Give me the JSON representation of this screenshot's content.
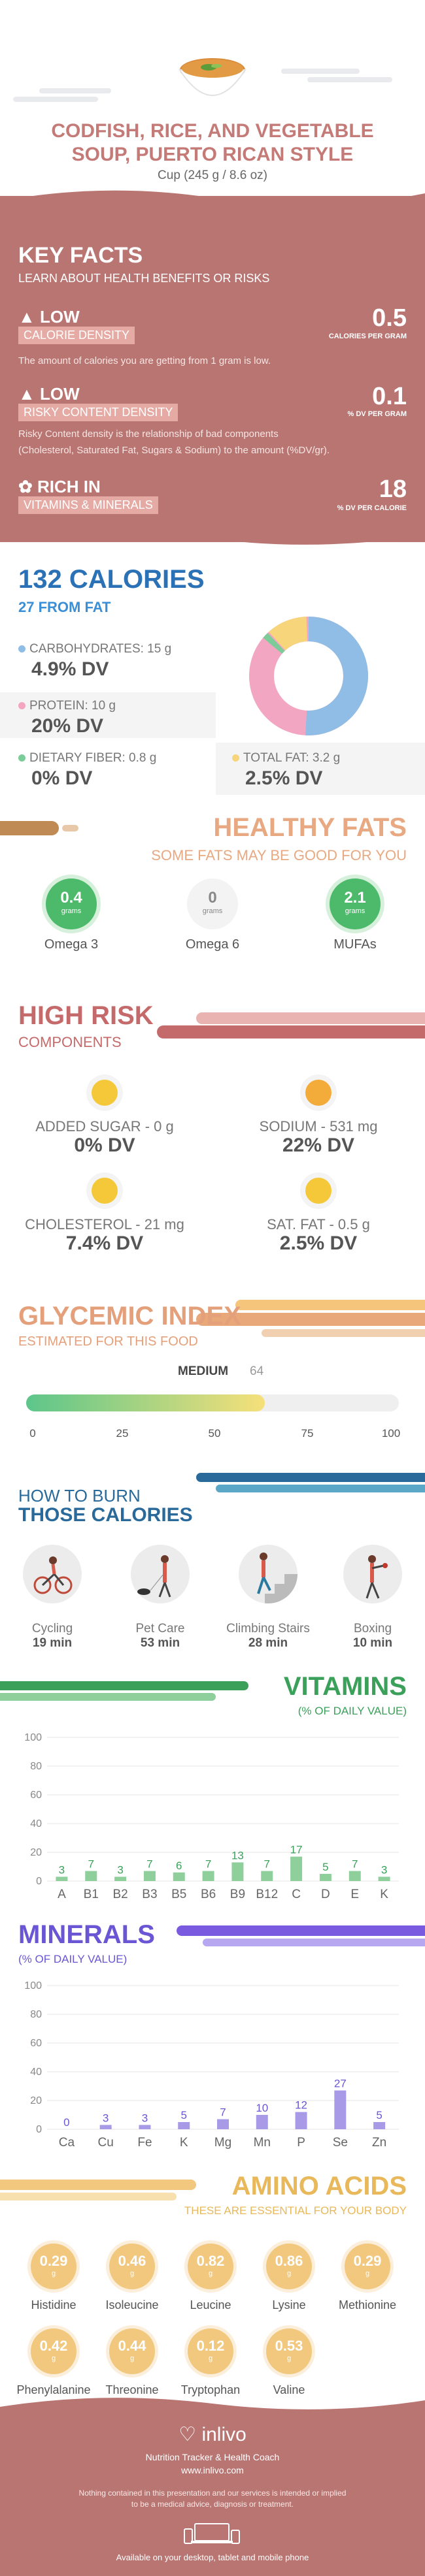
{
  "header": {
    "title_line1": "CODFISH, RICE, AND VEGETABLE",
    "title_line2": "SOUP, PUERTO RICAN STYLE",
    "serving": "Cup (245 g / 8.6 oz)"
  },
  "key_facts": {
    "title": "KEY FACTS",
    "subtitle": "LEARN ABOUT HEALTH BENEFITS OR RISKS",
    "calorie_density": {
      "level": "LOW",
      "label": "CALORIE DENSITY",
      "value": "0.5",
      "unit": "CALORIES PER GRAM",
      "desc": "The amount of calories you are getting from 1 gram is low."
    },
    "risky_density": {
      "level": "LOW",
      "label": "RISKY CONTENT DENSITY",
      "value": "0.1",
      "unit": "% DV PER GRAM",
      "desc1": "Risky Content density is the relationship of bad components",
      "desc2": "(Cholesterol, Saturated Fat, Sugars & Sodium) to the amount (%DV/gr)."
    },
    "vitamins": {
      "level": "RICH  IN",
      "label": "VITAMINS & MINERALS",
      "value": "18",
      "unit": "% DV PER CALORIE"
    }
  },
  "calories": {
    "title": "132 CALORIES",
    "from_fat": "27 FROM FAT",
    "carbs_label": "CARBOHYDRATES: 15 g",
    "carbs_dv": "4.9% DV",
    "protein_label": "PROTEIN: 10 g",
    "protein_dv": "20% DV",
    "fiber_label": "DIETARY FIBER: 0.8 g",
    "fiber_dv": "0% DV",
    "fat_label": "TOTAL FAT: 3.2 g",
    "fat_dv": "2.5% DV",
    "colors": {
      "carbs": "#90bde5",
      "protein": "#f3a6c1",
      "fiber": "#7ccc9a",
      "fat": "#f7d57a"
    }
  },
  "fats": {
    "title": "HEALTHY FATS",
    "subtitle": "SOME FATS MAY BE GOOD FOR YOU",
    "items": [
      {
        "value": "0.4",
        "unit": "grams",
        "label": "Omega 3"
      },
      {
        "value": "0",
        "unit": "grams",
        "label": "Omega 6"
      },
      {
        "value": "2.1",
        "unit": "grams",
        "label": "MUFAs"
      }
    ]
  },
  "risk": {
    "title": "HIGH RISK",
    "subtitle": "COMPONENTS",
    "items": [
      {
        "label": "ADDED SUGAR - 0 g",
        "dv": "0% DV"
      },
      {
        "label": "SODIUM - 531 mg",
        "dv": "22% DV"
      },
      {
        "label": "CHOLESTEROL - 21 mg",
        "dv": "7.4% DV"
      },
      {
        "label": "SAT. FAT - 0.5 g",
        "dv": "2.5% DV"
      }
    ]
  },
  "gi": {
    "title": "GLYCEMIC INDEX",
    "subtitle": "ESTIMATED FOR THIS FOOD",
    "level": "MEDIUM",
    "value": "64",
    "ticks": [
      "0",
      "25",
      "50",
      "75",
      "100"
    ]
  },
  "burn": {
    "title1": "HOW TO BURN",
    "title2": "THOSE CALORIES",
    "items": [
      {
        "label": "Cycling",
        "time": "19 min"
      },
      {
        "label": "Pet Care",
        "time": "53 min"
      },
      {
        "label": "Climbing Stairs",
        "time": "28 min"
      },
      {
        "label": "Boxing",
        "time": "10 min"
      }
    ]
  },
  "vitamins": {
    "title": "VITAMINS",
    "subtitle": "(% OF DAILY VALUE)"
  },
  "minerals": {
    "title": "MINERALS",
    "subtitle": "(% OF DAILY VALUE)"
  },
  "chart_data": [
    {
      "type": "bar",
      "categories": [
        "A",
        "B1",
        "B2",
        "B3",
        "B5",
        "B6",
        "B9",
        "B12",
        "C",
        "D",
        "E",
        "K"
      ],
      "values": [
        3,
        7,
        3,
        7,
        6,
        7,
        13,
        7,
        17,
        5,
        7,
        3
      ],
      "ylim": [
        0,
        100
      ],
      "yticks": [
        "0",
        "20",
        "40",
        "60",
        "80",
        "100"
      ],
      "color": "#8fcf9c",
      "label_color": "#3aa05a"
    },
    {
      "type": "bar",
      "categories": [
        "Ca",
        "Cu",
        "Fe",
        "K",
        "Mg",
        "Mn",
        "P",
        "Se",
        "Zn"
      ],
      "values": [
        0,
        3,
        3,
        5,
        7,
        10,
        12,
        27,
        5
      ],
      "ylim": [
        0,
        100
      ],
      "yticks": [
        "0",
        "20",
        "40",
        "60",
        "80",
        "100"
      ],
      "color": "#a99ae8",
      "label_color": "#6a55d4"
    }
  ],
  "amino": {
    "title": "AMINO ACIDS",
    "subtitle": "THESE ARE ESSENTIAL FOR YOUR BODY",
    "unit": "g",
    "items": [
      {
        "value": "0.29",
        "label": "Histidine"
      },
      {
        "value": "0.46",
        "label": "Isoleucine"
      },
      {
        "value": "0.82",
        "label": "Leucine"
      },
      {
        "value": "0.86",
        "label": "Lysine"
      },
      {
        "value": "0.29",
        "label": "Methionine"
      },
      {
        "value": "0.42",
        "label": "Phenylalanine"
      },
      {
        "value": "0.44",
        "label": "Threonine"
      },
      {
        "value": "0.12",
        "label": "Tryptophan"
      },
      {
        "value": "0.53",
        "label": "Valine"
      }
    ]
  },
  "footer": {
    "brand": "inlivo",
    "tagline": "Nutrition Tracker & Health Coach",
    "url": "www.inlivo.com",
    "disclaimer1": "Nothing contained in this presentation and our services is intended or implied",
    "disclaimer2": "to be a medical advice, diagnosis or treatment.",
    "available": "Available on your desktop, tablet and mobile phone"
  }
}
